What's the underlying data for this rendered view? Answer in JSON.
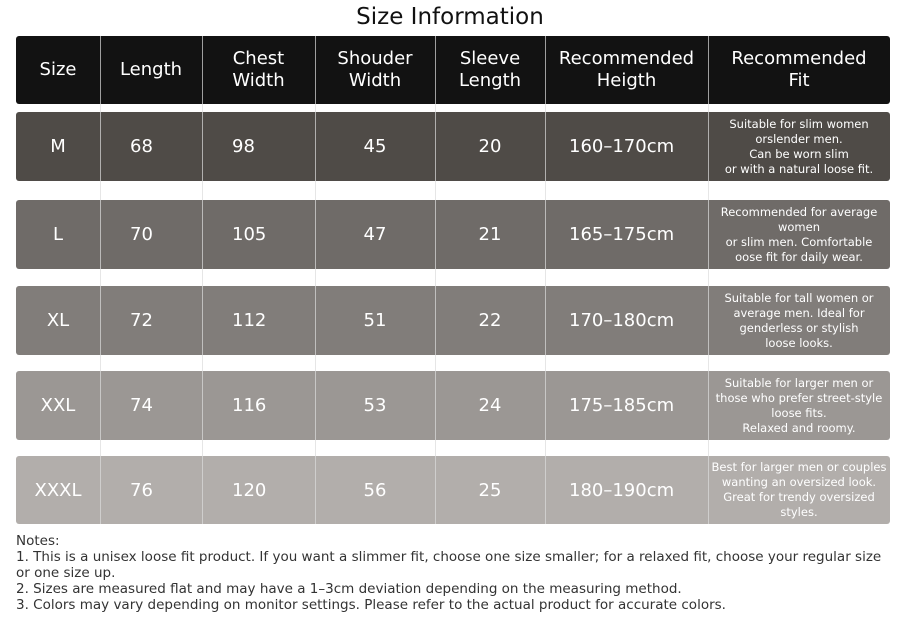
{
  "title": "Size Information",
  "table": {
    "header": [
      "Size",
      "Length",
      "Chest\nWidth",
      "Shouder\nWidth",
      "Sleeve\nLength",
      "Recommended\nHeigth",
      "Recommended\nFit"
    ],
    "rows": [
      [
        "M",
        68,
        98,
        45,
        20,
        "160–170cm",
        "Suitable for slim women\norslender men.\nCan be worn slim\nor with a natural loose fit."
      ],
      [
        "L",
        70,
        105,
        47,
        21,
        "165–175cm",
        "Recommended for average\nwomen\nor slim men. Comfortable\noose fit for daily wear."
      ],
      [
        "XL",
        72,
        112,
        51,
        22,
        "170–180cm",
        "Suitable for tall women or\naverage men. Ideal for\ngenderless or stylish\nloose looks."
      ],
      [
        "XXL",
        74,
        116,
        53,
        24,
        "175–185cm",
        "Suitable for larger men or\nthose who prefer street-style\nloose fits.\nRelaxed and roomy."
      ],
      [
        "XXXL",
        76,
        120,
        56,
        25,
        "180–190cm",
        "Best for larger men or couples\nwanting an oversized look.\nGreat for trendy oversized\nstyles."
      ]
    ]
  },
  "notes": {
    "heading": "Notes:",
    "items": [
      "1. This is a unisex loose fit product. If you want a slimmer fit, choose one size smaller; for a relaxed fit, choose your regular size or one size up.",
      "2. Sizes are measured flat and may have a 1–3cm deviation depending on the measuring method.",
      "3. Colors may vary depending on monitor settings. Please refer to the actual product for accurate colors."
    ]
  }
}
